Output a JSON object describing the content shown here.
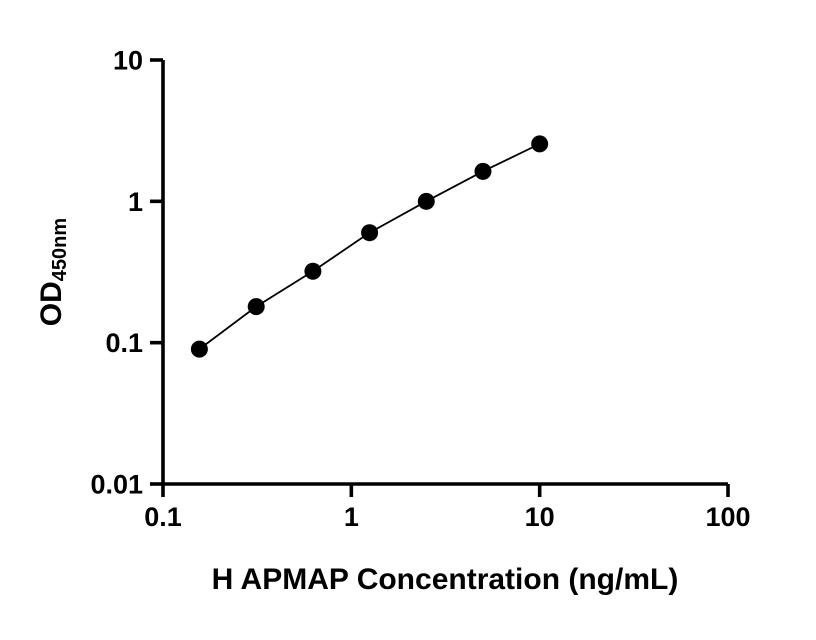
{
  "chart_data": {
    "type": "line",
    "title": "",
    "xlabel": "H APMAP Concentration (ng/mL)",
    "ylabel_main": "OD",
    "ylabel_sub": "450nm",
    "x": [
      0.156,
      0.3125,
      0.625,
      1.25,
      2.5,
      5,
      10
    ],
    "y": [
      0.09,
      0.18,
      0.32,
      0.6,
      1.0,
      1.63,
      2.55
    ],
    "xlim": [
      0.1,
      100
    ],
    "ylim": [
      0.01,
      10
    ],
    "x_scale": "log",
    "y_scale": "log",
    "x_tick_values": [
      0.1,
      1,
      10,
      100
    ],
    "x_tick_labels": [
      "0.1",
      "1",
      "10",
      "100"
    ],
    "y_tick_values": [
      0.01,
      0.1,
      1,
      10
    ],
    "y_tick_labels": [
      "0.01",
      "0.1",
      "1",
      "10"
    ],
    "grid": "off",
    "legend": "none",
    "marker_color": "#000000",
    "line_color": "#000000",
    "axis_color": "#000000"
  }
}
